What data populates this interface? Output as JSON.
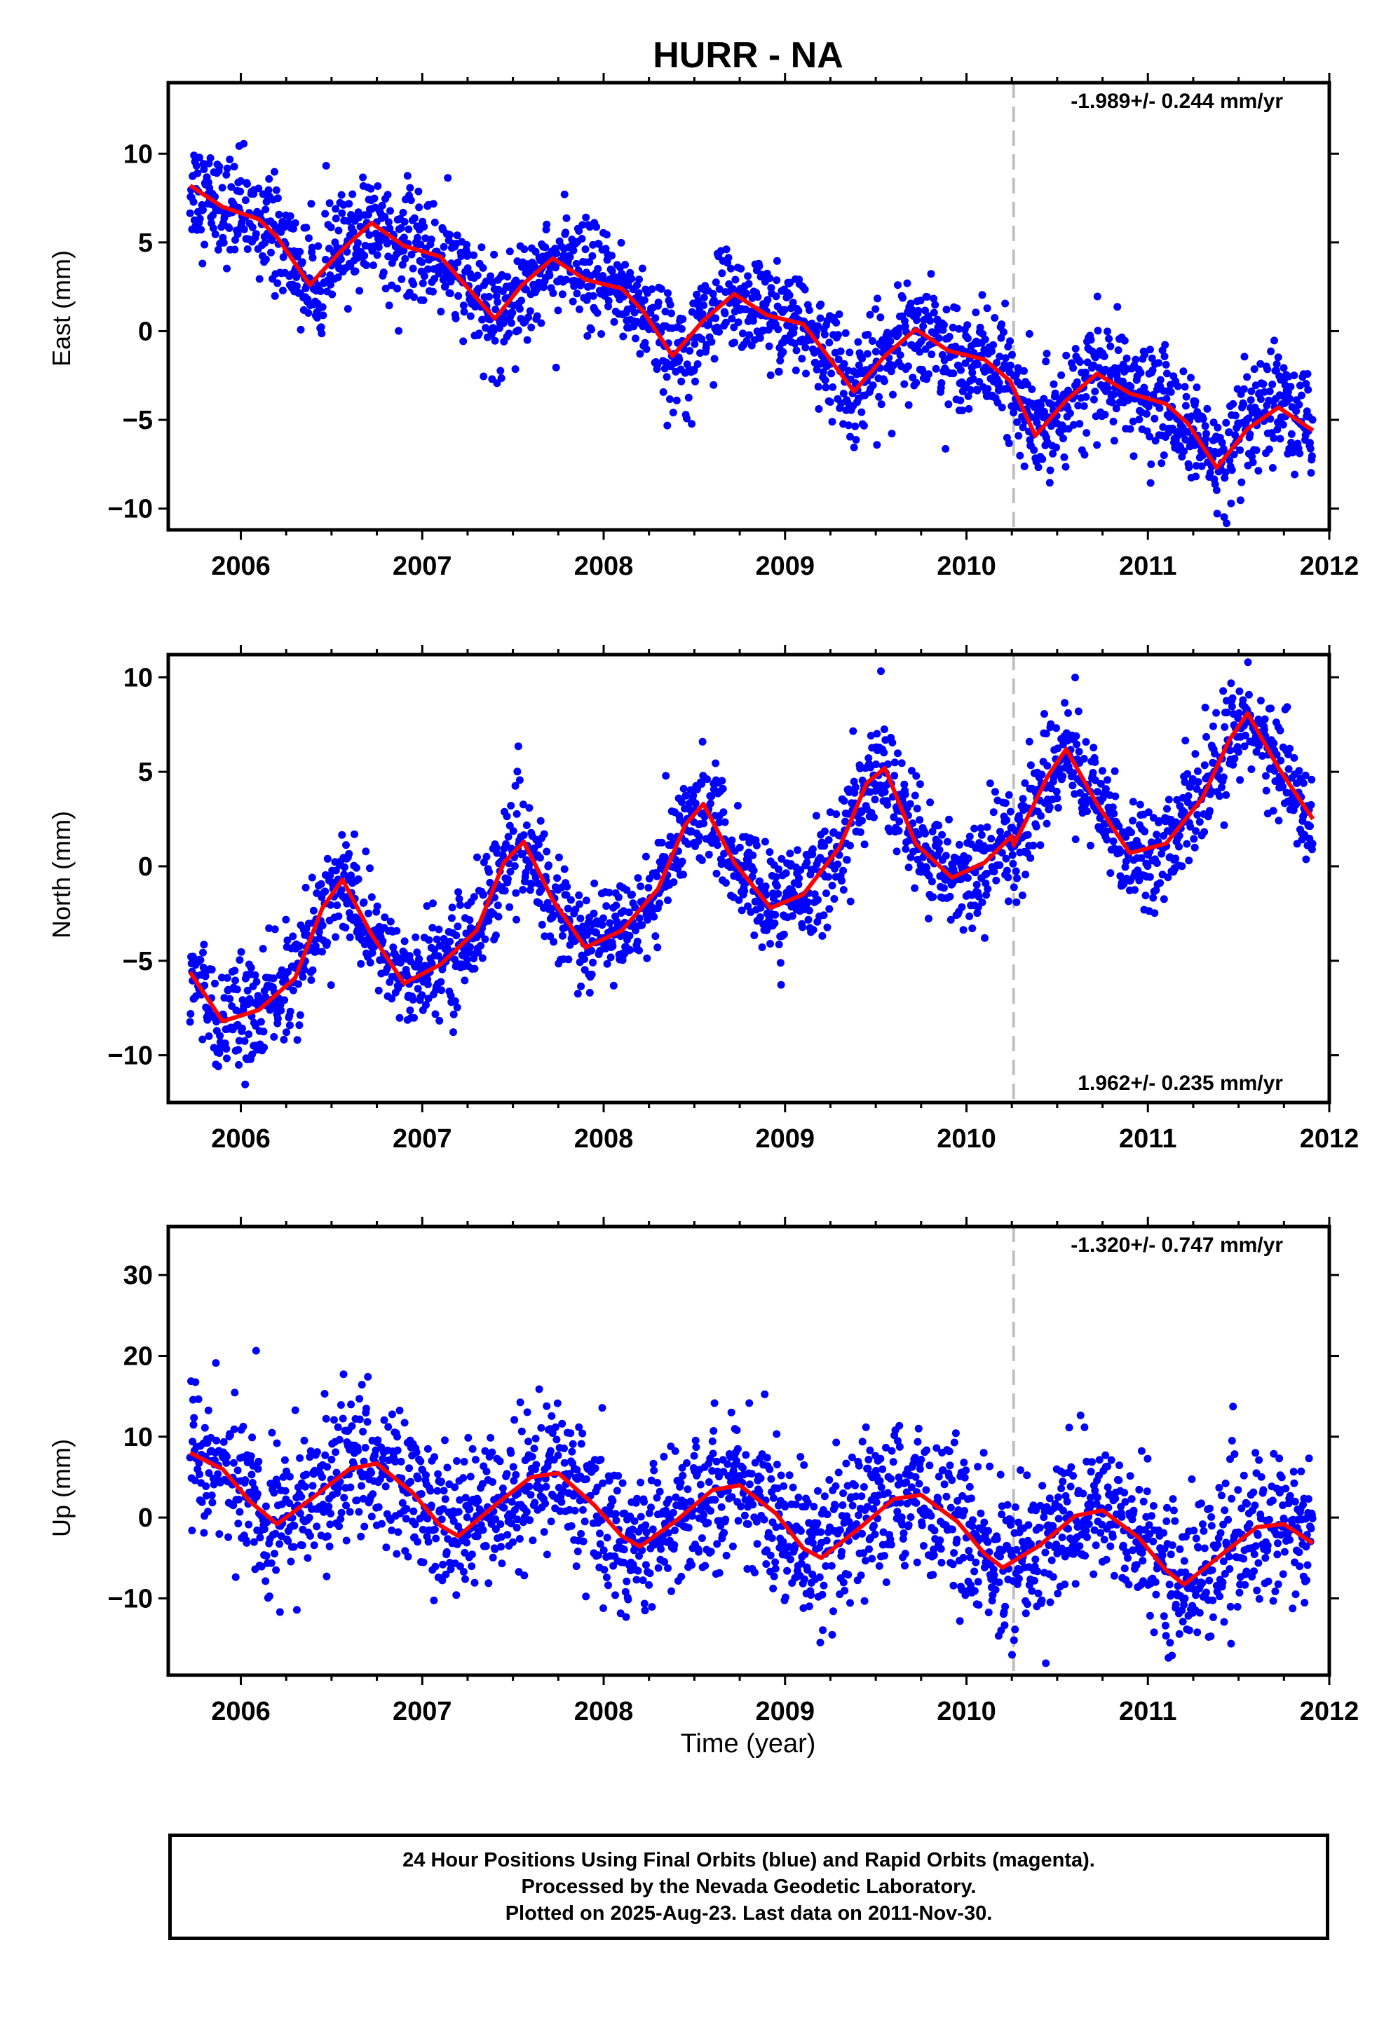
{
  "title": "HURR - NA",
  "xlabel": "Time (year)",
  "footer": {
    "line1": "24 Hour Positions Using Final Orbits (blue) and Rapid Orbits (magenta).",
    "line2": "Processed by the Nevada Geodetic Laboratory.",
    "line3": "Plotted on 2025-Aug-23. Last data on 2011-Nov-30."
  },
  "colors": {
    "points": "#0000ff",
    "fit": "#ff0000",
    "break_line": "#c0c0c0",
    "frame": "#000000"
  },
  "chart_data": [
    {
      "type": "scatter",
      "component": "east",
      "ylabel": "East (mm)",
      "rate_label": "-1.989+/- 0.244 mm/yr",
      "rate_position": "top-right",
      "xlim": [
        2005.6,
        2012.0
      ],
      "ylim": [
        -11.2,
        14
      ],
      "xticks": [
        2006,
        2007,
        2008,
        2009,
        2010,
        2011,
        2012
      ],
      "yticks": [
        -10,
        -5,
        0,
        5,
        10
      ],
      "break_epoch": 2010.26,
      "series": [
        {
          "kind": "observations",
          "x_range": [
            2005.72,
            2011.91
          ],
          "values_approx": "daily positions, scatter about the fit, sigma ~1.5 mm"
        },
        {
          "kind": "fit",
          "x": [
            2005.72,
            2005.9,
            2006.1,
            2006.2,
            2006.38,
            2006.55,
            2006.72,
            2006.9,
            2007.1,
            2007.22,
            2007.4,
            2007.55,
            2007.72,
            2007.9,
            2008.1,
            2008.22,
            2008.38,
            2008.55,
            2008.72,
            2008.9,
            2009.1,
            2009.22,
            2009.38,
            2009.55,
            2009.72,
            2009.9,
            2010.1,
            2010.24,
            2010.38,
            2010.55,
            2010.72,
            2010.9,
            2011.1,
            2011.22,
            2011.38,
            2011.55,
            2011.72,
            2011.91
          ],
          "y": [
            8.2,
            7.0,
            6.3,
            5.3,
            2.6,
            4.5,
            6.1,
            4.8,
            4.2,
            2.8,
            0.7,
            2.6,
            4.1,
            2.9,
            2.4,
            1.1,
            -1.4,
            0.6,
            2.1,
            0.9,
            0.4,
            -1.2,
            -3.4,
            -1.4,
            0.1,
            -1.1,
            -1.6,
            -2.8,
            -5.9,
            -3.9,
            -2.4,
            -3.5,
            -4.1,
            -5.2,
            -7.7,
            -5.5,
            -4.3,
            -5.6
          ]
        }
      ]
    },
    {
      "type": "scatter",
      "component": "north",
      "ylabel": "North (mm)",
      "rate_label": "1.962+/- 0.235 mm/yr",
      "rate_position": "bottom-right",
      "xlim": [
        2005.6,
        2012.0
      ],
      "ylim": [
        -12.5,
        11.2
      ],
      "xticks": [
        2006,
        2007,
        2008,
        2009,
        2010,
        2011,
        2012
      ],
      "yticks": [
        -10,
        -5,
        0,
        5,
        10
      ],
      "break_epoch": 2010.26,
      "series": [
        {
          "kind": "observations",
          "x_range": [
            2005.72,
            2011.91
          ],
          "values_approx": "daily positions, scatter about the fit, sigma ~1.4 mm"
        },
        {
          "kind": "fit",
          "x": [
            2005.72,
            2005.9,
            2006.1,
            2006.3,
            2006.45,
            2006.56,
            2006.72,
            2006.9,
            2007.1,
            2007.3,
            2007.45,
            2007.56,
            2007.72,
            2007.9,
            2008.1,
            2008.3,
            2008.45,
            2008.55,
            2008.72,
            2008.92,
            2009.1,
            2009.3,
            2009.45,
            2009.55,
            2009.72,
            2009.92,
            2010.1,
            2010.25,
            2010.26,
            2010.45,
            2010.55,
            2010.72,
            2010.9,
            2011.1,
            2011.3,
            2011.45,
            2011.55,
            2011.72,
            2011.91
          ],
          "y": [
            -5.6,
            -8.2,
            -7.6,
            -5.9,
            -2.2,
            -0.7,
            -3.6,
            -6.2,
            -5.2,
            -3.4,
            0.2,
            1.3,
            -1.8,
            -4.3,
            -3.4,
            -1.2,
            2.2,
            3.3,
            0.2,
            -2.2,
            -1.5,
            1.0,
            4.4,
            5.2,
            1.2,
            -0.6,
            0.2,
            1.6,
            1.1,
            4.8,
            6.2,
            3.3,
            0.7,
            1.2,
            3.6,
            6.7,
            8.1,
            5.2,
            2.5
          ]
        }
      ]
    },
    {
      "type": "scatter",
      "component": "up",
      "ylabel": "Up (mm)",
      "rate_label": "-1.320+/- 0.747 mm/yr",
      "rate_position": "top-right",
      "xlim": [
        2005.6,
        2012.0
      ],
      "ylim": [
        -19.5,
        36
      ],
      "xticks": [
        2006,
        2007,
        2008,
        2009,
        2010,
        2011,
        2012
      ],
      "yticks": [
        -10,
        0,
        10,
        20,
        30
      ],
      "break_epoch": 2010.26,
      "series": [
        {
          "kind": "observations",
          "x_range": [
            2005.72,
            2011.91
          ],
          "values_approx": "daily positions, scatter about the fit, sigma ~4.5 mm"
        },
        {
          "kind": "fit",
          "x": [
            2005.72,
            2005.9,
            2006.05,
            2006.2,
            2006.4,
            2006.6,
            2006.75,
            2006.95,
            2007.1,
            2007.2,
            2007.4,
            2007.6,
            2007.75,
            2007.95,
            2008.1,
            2008.2,
            2008.4,
            2008.6,
            2008.75,
            2008.95,
            2009.1,
            2009.2,
            2009.4,
            2009.6,
            2009.75,
            2009.95,
            2010.1,
            2010.2,
            2010.4,
            2010.6,
            2010.75,
            2010.95,
            2011.1,
            2011.2,
            2011.4,
            2011.6,
            2011.75,
            2011.91
          ],
          "y": [
            8.0,
            6.0,
            2.0,
            -0.8,
            2.5,
            6.0,
            6.7,
            3.0,
            -1.0,
            -2.3,
            1.5,
            5.0,
            5.5,
            1.5,
            -2.3,
            -3.6,
            -0.4,
            3.4,
            4.0,
            0.5,
            -3.8,
            -5.0,
            -1.5,
            2.3,
            2.8,
            -0.5,
            -4.5,
            -6.2,
            -3.5,
            0.2,
            0.9,
            -2.5,
            -6.5,
            -8.3,
            -4.7,
            -1.2,
            -0.8,
            -3.2
          ]
        }
      ]
    }
  ]
}
